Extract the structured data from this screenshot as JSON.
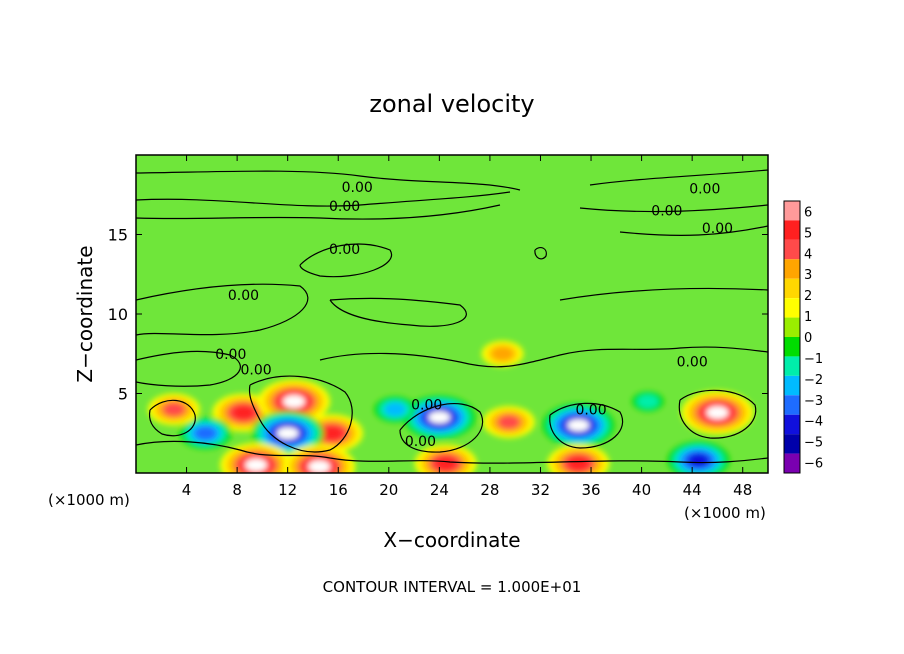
{
  "chart_data": {
    "type": "heatmap",
    "title": "zonal velocity",
    "xlabel": "X−coordinate",
    "ylabel": "Z−coordinate",
    "x_unit_left": "(×1000 m)",
    "x_unit_right": "(×1000 m)",
    "xlim": [
      0,
      50
    ],
    "ylim": [
      0,
      20
    ],
    "x_ticks": [
      4,
      8,
      12,
      16,
      20,
      24,
      28,
      32,
      36,
      40,
      44,
      48
    ],
    "x_tick_labels": [
      "4",
      "8",
      "12",
      "16",
      "20",
      "24",
      "28",
      "32",
      "36",
      "40",
      "44",
      "48"
    ],
    "y_ticks": [
      5,
      10,
      15
    ],
    "y_tick_labels": [
      "5",
      "10",
      "15"
    ],
    "colorbar": {
      "vmin": -6,
      "vmax": 6,
      "levels": [
        6,
        5,
        4,
        3,
        2,
        1,
        0,
        -1,
        -2,
        -3,
        -4,
        -5,
        -6
      ],
      "labels": [
        "6",
        "5",
        "4",
        "3",
        "2",
        "1",
        "0",
        "−1",
        "−2",
        "−3",
        "−4",
        "−5",
        "−6"
      ],
      "colors": [
        "#ff9a9a",
        "#ff2020",
        "#ff4a4a",
        "#ffa500",
        "#ffd700",
        "#ffff00",
        "#9aee00",
        "#00dd00",
        "#00eeaa",
        "#00bbff",
        "#1e6cff",
        "#1010dd",
        "#0000aa",
        "#7a00b0"
      ]
    },
    "features": [
      {
        "x": 8.5,
        "z": 3.8,
        "value": 5
      },
      {
        "x": 12.5,
        "z": 4.5,
        "value": 6
      },
      {
        "x": 15.5,
        "z": 2.5,
        "value": 5
      },
      {
        "x": 12.0,
        "z": 2.5,
        "value": -6
      },
      {
        "x": 9.5,
        "z": 0.5,
        "value": 6
      },
      {
        "x": 14.5,
        "z": 0.4,
        "value": 6
      },
      {
        "x": 24.5,
        "z": 0.6,
        "value": 5
      },
      {
        "x": 24.0,
        "z": 3.5,
        "value": -6
      },
      {
        "x": 29.5,
        "z": 3.2,
        "value": 4
      },
      {
        "x": 35.0,
        "z": 3.0,
        "value": -6
      },
      {
        "x": 35.0,
        "z": 0.6,
        "value": 5
      },
      {
        "x": 46.0,
        "z": 3.8,
        "value": 6
      },
      {
        "x": 44.5,
        "z": 0.8,
        "value": -5
      },
      {
        "x": 5.5,
        "z": 2.5,
        "value": -4
      },
      {
        "x": 3.0,
        "z": 4.0,
        "value": 4
      },
      {
        "x": 29.0,
        "z": 7.5,
        "value": 3
      },
      {
        "x": 20.5,
        "z": 4.0,
        "value": -3
      },
      {
        "x": 40.5,
        "z": 4.5,
        "value": -2
      }
    ],
    "contour_labels": [
      {
        "x": 17.5,
        "z": 18.0,
        "text": "0.00"
      },
      {
        "x": 16.5,
        "z": 16.8,
        "text": "0.00"
      },
      {
        "x": 45.0,
        "z": 17.9,
        "text": "0.00"
      },
      {
        "x": 42.0,
        "z": 16.5,
        "text": "0.00"
      },
      {
        "x": 46.0,
        "z": 15.4,
        "text": "0.00"
      },
      {
        "x": 16.5,
        "z": 14.1,
        "text": "0.00"
      },
      {
        "x": 8.5,
        "z": 11.2,
        "text": "0.00"
      },
      {
        "x": 7.5,
        "z": 7.5,
        "text": "0.00"
      },
      {
        "x": 9.5,
        "z": 6.5,
        "text": "0.00"
      },
      {
        "x": 44.0,
        "z": 7.0,
        "text": "0.00"
      },
      {
        "x": 23.0,
        "z": 4.3,
        "text": "0.00"
      },
      {
        "x": 36.0,
        "z": 4.0,
        "text": "0.00"
      },
      {
        "x": 22.5,
        "z": 2.0,
        "text": "0.00"
      }
    ]
  },
  "footer": {
    "contour_interval": "CONTOUR INTERVAL = 1.000E+01"
  }
}
